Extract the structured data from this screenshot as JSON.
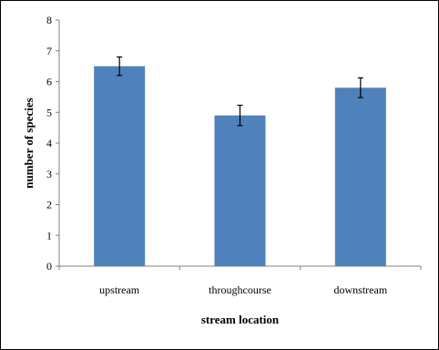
{
  "chart_data": {
    "type": "bar",
    "categories": [
      "upstream",
      "throughcourse",
      "downstream"
    ],
    "values": [
      6.5,
      4.9,
      5.8
    ],
    "error": [
      0.3,
      0.33,
      0.32
    ],
    "xlabel": "stream location",
    "ylabel": "number of species",
    "ylim": [
      0,
      8
    ],
    "yticks": [
      "0",
      "1",
      "2",
      "3",
      "4",
      "5",
      "6",
      "7",
      "8"
    ],
    "grid": false,
    "bar_color": "#4f81bd"
  }
}
